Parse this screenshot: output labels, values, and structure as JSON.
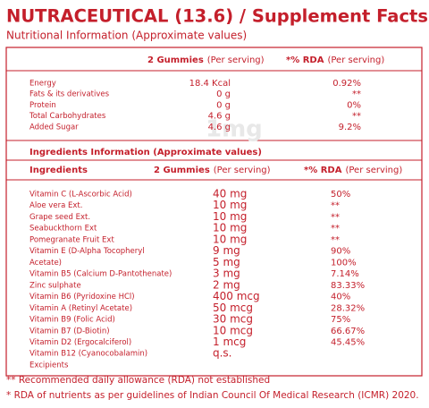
{
  "header": {
    "title": "NUTRACEUTICAL (13.6) / Supplement Facts",
    "subtitle": "Nutritional Information (Approximate values)"
  },
  "nutrition_table": {
    "header": [
      {
        "bold": "2 Gummies",
        "note": "(Per serving)"
      },
      {
        "bold": "*% RDA",
        "note": "(Per serving)"
      }
    ],
    "rows": [
      [
        "Energy",
        "18.4 Kcal",
        "0.92%"
      ],
      [
        "Fats & its derivatives",
        "0 g",
        "**"
      ],
      [
        "Protein",
        "0 g",
        "0%"
      ],
      [
        "Total Carbohydrates",
        "4.6 g",
        "**"
      ],
      [
        "Added Sugar",
        "4.6 g",
        "9.2%"
      ]
    ]
  },
  "ingredients_table": {
    "title": "Ingredients Information (Approximate values)",
    "header": [
      {
        "bold": "Ingredients"
      },
      {
        "bold": "2 Gummies",
        "note": "(Per serving)"
      },
      {
        "bold": "*% RDA",
        "note": "(Per serving)"
      }
    ],
    "rows": [
      {
        "name": "Vitamin C (L-Ascorbic Acid)",
        "amount": "40 mg",
        "rda": "50%"
      },
      {
        "name": "Aloe vera Ext.",
        "amount": "10 mg",
        "rda": "**"
      },
      {
        "name": "Grape seed Ext.",
        "amount": "10 mg",
        "rda": "**"
      },
      {
        "name": "Seabuckthorn Ext",
        "amount": "10 mg",
        "rda": "**"
      },
      {
        "name": "Pomegranate Fruit Ext",
        "amount": "10 mg",
        "rda": "**"
      },
      {
        "name": "Vitamin E (D-Alpha Tocopheryl",
        "amount": "9 mg",
        "rda": "90%"
      },
      {
        "name": "Acetate)",
        "amount": "5 mg",
        "rda": "100%"
      },
      {
        "name": "Vitamin B5 (Calcium D-Pantothenate)",
        "amount": "3 mg",
        "rda": "7.14%"
      },
      {
        "name": "Zinc sulphate",
        "amount": "2 mg",
        "rda": "83.33%"
      },
      {
        "name": "Vitamin B6 (Pyridoxine HCl)",
        "amount": "400 mcg",
        "rda": "40%"
      },
      {
        "name": "Vitamin A (Retinyl Acetate)",
        "amount": "50 mcg",
        "rda": "28.32%"
      },
      {
        "name": "Vitamin B9 (Folic Acid)",
        "amount": "30 mcg",
        "rda": "75%"
      },
      {
        "name": "Vitamin B7 (D-Biotin)",
        "amount": "10 mcg",
        "rda": "66.67%"
      },
      {
        "name": "Vitamin D2 (Ergocalciferol)",
        "amount": "1 mcg",
        "rda": "45.45%"
      },
      {
        "name": "Vitamin B12 (Cyanocobalamin)",
        "amount": "q.s."
      },
      {
        "name": "Excipients"
      }
    ]
  },
  "watermark": "1mg",
  "footnotes": [
    "** Recommended daily allowance (RDA) not established",
    "* RDA of nutrients as per guidelines of Indian Council Of Medical Research (ICMR) 2020."
  ]
}
